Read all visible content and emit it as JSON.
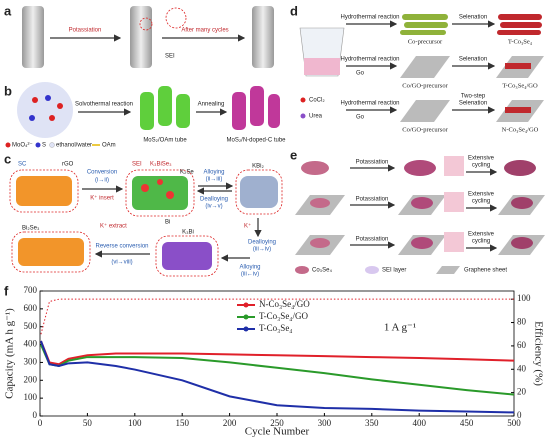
{
  "panels": [
    {
      "label": "a",
      "texts": [
        "Potassiation",
        "After many cycles",
        "SEI"
      ]
    },
    {
      "label": "b",
      "texts": [
        "Solvothermal reaction",
        "Annealing",
        "MoS₂/OAm tube",
        "MoS₂/N-doped-C tube",
        "MoO₄²⁻",
        "S",
        "ethanol/water",
        "OAm"
      ]
    },
    {
      "label": "c",
      "texts": [
        "SC",
        "rGO",
        "Conversion",
        "(i→ii)",
        "K⁺ insert",
        "SEI",
        "K₃BiSe₃",
        "K₂Se",
        "Bi",
        "Alloying",
        "(ii→iii)",
        "Dealloying",
        "(iv→v)",
        "KBi₂",
        "Bi₂Se₃",
        "K⁺ extract",
        "Reverse conversion",
        "(vi→viii)",
        "K₃Bi",
        "K⁺",
        "Dealloying",
        "(iii→iv)",
        "Alloying",
        "(iii←iv)"
      ]
    },
    {
      "label": "d",
      "texts": [
        "Hydrothermal reaction",
        "Co-precursor",
        "Selenation",
        "T-Co₃Se₄",
        "Hydrothermal reaction",
        "Go",
        "Co/GO-precursor",
        "Selenation",
        "T-Co₃Se₄/GO",
        "Hydrothermal reaction",
        "Go",
        "Co/GO-precursor",
        "Two-step",
        "Selenation",
        "N-Co₃Se₄/GO",
        "CoCl₂",
        "Urea"
      ]
    },
    {
      "label": "e",
      "texts": [
        "Potassiation",
        "Extensive",
        "cycling",
        "Potassiation",
        "Extensive",
        "cycling",
        "Potassiation",
        "Extensive",
        "cycling",
        "Co₃Se₄",
        "SEI layer",
        "Graphene sheet"
      ]
    }
  ],
  "chart_data": {
    "type": "line",
    "label": "f",
    "xlabel": "Cycle Number",
    "ylabel": "Capacity (mA h g⁻¹)",
    "y2label": "Efficiency (%)",
    "annotation": "1 A g⁻¹",
    "legend": "upper center",
    "x": [
      1,
      10,
      20,
      30,
      50,
      80,
      100,
      150,
      200,
      250,
      300,
      350,
      400,
      450,
      500
    ],
    "series": [
      {
        "name": "N-Co₃Se₄/GO",
        "color": "#e0202a",
        "values": [
          420,
          300,
          290,
          320,
          340,
          350,
          350,
          350,
          345,
          340,
          335,
          330,
          325,
          318,
          310
        ]
      },
      {
        "name": "T-Co₃Se₄/GO",
        "color": "#2a9a2a",
        "values": [
          400,
          290,
          280,
          310,
          330,
          330,
          330,
          325,
          300,
          270,
          240,
          205,
          175,
          145,
          120
        ]
      },
      {
        "name": "T-Co₃Se₄",
        "color": "#1f2fa8",
        "values": [
          420,
          290,
          280,
          295,
          300,
          280,
          260,
          200,
          110,
          60,
          45,
          40,
          30,
          25,
          20
        ]
      },
      {
        "color": "#e0202a",
        "axis": "y2",
        "values": [
          70,
          98,
          100,
          100,
          100,
          100,
          100,
          100,
          100,
          100,
          100,
          100,
          100,
          100,
          100
        ]
      }
    ],
    "xlim": [
      0,
      500
    ],
    "xticks": [
      0,
      50,
      100,
      150,
      200,
      250,
      300,
      350,
      400,
      450,
      500
    ],
    "ylim": [
      0,
      700
    ],
    "yticks": [
      0,
      100,
      200,
      300,
      400,
      500,
      600,
      700
    ],
    "y2lim": [
      0,
      107
    ],
    "y2ticks": [
      0,
      20,
      40,
      60,
      80,
      100
    ]
  }
}
